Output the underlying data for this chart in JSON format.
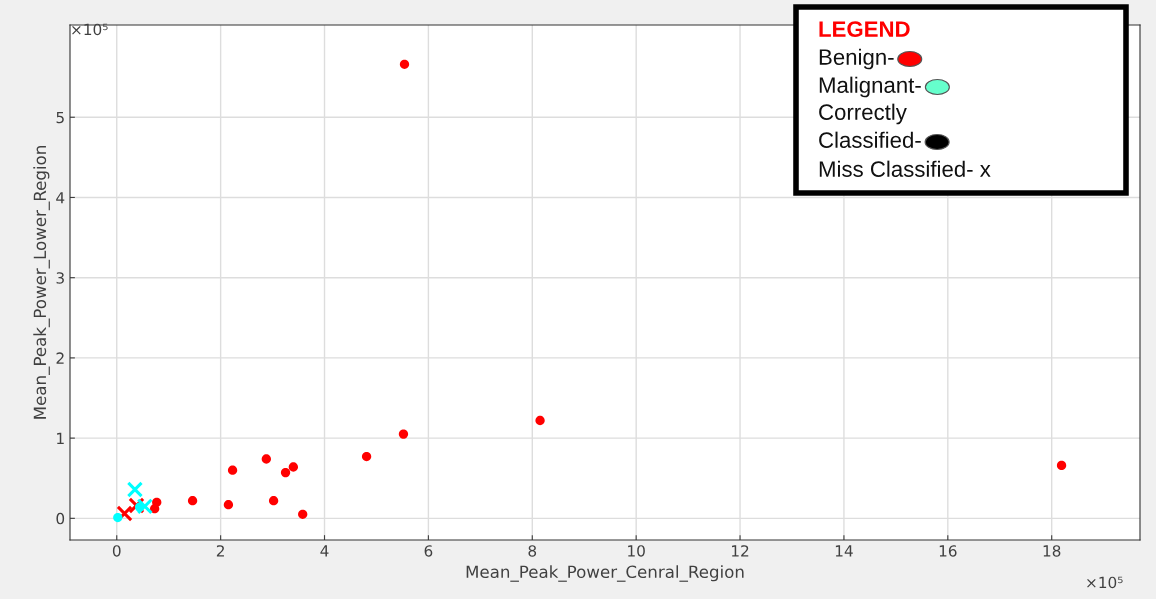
{
  "chart_data": {
    "type": "scatter",
    "xlabel": "Mean_Peak_Power_Cenral_Region",
    "ylabel": "Mean_Peak_Power_Lower_Region",
    "xlim": [
      -0.9,
      19.7
    ],
    "ylim": [
      -0.27,
      6.15
    ],
    "xticks": [
      0,
      2,
      4,
      6,
      8,
      10,
      12,
      14,
      16,
      18
    ],
    "yticks": [
      0,
      1,
      2,
      3,
      4,
      5
    ],
    "grid": true,
    "series": [
      {
        "color": "#ff0000",
        "marker": "circle",
        "x": [
          5.54,
          8.15,
          18.19,
          5.52,
          4.81,
          2.88,
          2.23,
          3.4,
          3.25,
          1.46,
          2.15,
          3.02,
          3.58,
          0.77,
          0.73
        ],
        "values": [
          5.66,
          1.22,
          0.66,
          1.05,
          0.77,
          0.74,
          0.6,
          0.64,
          0.57,
          0.22,
          0.17,
          0.22,
          0.05,
          0.2,
          0.12
        ]
      },
      {
        "color": "#ff0000",
        "marker": "cross",
        "x": [
          0.15,
          0.38
        ],
        "values": [
          0.06,
          0.16
        ]
      },
      {
        "color": "#00ffff",
        "marker": "circle",
        "x": [
          0.02,
          0.44
        ],
        "values": [
          0.01,
          0.14
        ]
      },
      {
        "color": "#00ffff",
        "marker": "cross",
        "x": [
          0.35,
          0.54
        ],
        "values": [
          0.36,
          0.15
        ]
      }
    ],
    "annotations": [
      "×10⁵",
      "×10⁵",
      "LEGEND",
      "Benign-",
      "Malignant-",
      "Correctly",
      "Classified-",
      "Miss Classified- x"
    ]
  }
}
